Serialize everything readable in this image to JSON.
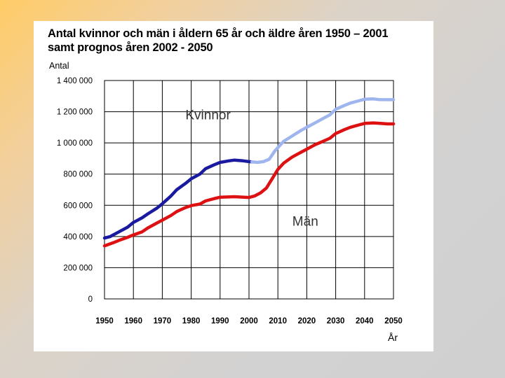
{
  "chart_data": {
    "type": "line",
    "title": "Antal kvinnor och män i åldern 65 år och äldre åren 1950 – 2001",
    "subtitle": "samt prognos åren 2002 - 2050",
    "ylabel": "Antal",
    "xlabel": "År",
    "xlim": [
      1950,
      2050
    ],
    "ylim": [
      0,
      1400000
    ],
    "y_ticks": [
      0,
      200000,
      400000,
      600000,
      800000,
      1000000,
      1200000,
      1400000
    ],
    "y_tick_labels": [
      "0",
      "200 000",
      "400 000",
      "600 000",
      "800 000",
      "1 000 000",
      "1 200 000",
      "1 400 000"
    ],
    "x_ticks": [
      1950,
      1960,
      1970,
      1980,
      1990,
      2000,
      2010,
      2020,
      2030,
      2040,
      2050
    ],
    "x_tick_labels": [
      "1950",
      "1960",
      "1970",
      "1980",
      "1990",
      "2000",
      "2010",
      "2020",
      "2030",
      "2040",
      "2050"
    ],
    "grid": true,
    "annotations": [
      {
        "text": "Kvinnor",
        "x": 1978,
        "y": 1150000
      },
      {
        "text": "Män",
        "x": 2015,
        "y": 470000
      }
    ],
    "series": [
      {
        "name": "Kvinnor",
        "color": "#1a1aa0",
        "x": [
          1950,
          1952,
          1955,
          1958,
          1960,
          1963,
          1965,
          1968,
          1970,
          1973,
          1975,
          1978,
          1980,
          1983,
          1985,
          1988,
          1990,
          1993,
          1995,
          1998,
          2000,
          2001
        ],
        "values": [
          390000,
          400000,
          430000,
          460000,
          490000,
          520000,
          545000,
          580000,
          610000,
          660000,
          700000,
          740000,
          770000,
          800000,
          835000,
          860000,
          875000,
          885000,
          890000,
          885000,
          880000,
          878000
        ]
      },
      {
        "name": "Kvinnor (prognos)",
        "color": "#9fb5ee",
        "x": [
          2001,
          2003,
          2005,
          2007,
          2009,
          2012,
          2015,
          2018,
          2020,
          2023,
          2025,
          2028,
          2030,
          2033,
          2035,
          2038,
          2040,
          2043,
          2045,
          2048,
          2050
        ],
        "values": [
          878000,
          875000,
          880000,
          895000,
          950000,
          1010000,
          1045000,
          1080000,
          1100000,
          1130000,
          1150000,
          1180000,
          1215000,
          1240000,
          1255000,
          1270000,
          1280000,
          1282000,
          1278000,
          1277000,
          1277000
        ]
      },
      {
        "name": "Män",
        "color": "#dd1111",
        "x": [
          1950,
          1953,
          1955,
          1958,
          1960,
          1963,
          1965,
          1968,
          1970,
          1973,
          1975,
          1978,
          1980,
          1983,
          1985,
          1988,
          1990,
          1995,
          2000,
          2002,
          2004,
          2006,
          2008,
          2010,
          2012,
          2015,
          2018,
          2020,
          2023,
          2025,
          2028,
          2030,
          2033,
          2035,
          2038,
          2040,
          2043,
          2045,
          2048,
          2050
        ],
        "values": [
          340000,
          360000,
          375000,
          395000,
          410000,
          430000,
          455000,
          485000,
          505000,
          535000,
          560000,
          585000,
          598000,
          608000,
          628000,
          643000,
          652000,
          655000,
          650000,
          660000,
          680000,
          710000,
          770000,
          830000,
          870000,
          910000,
          940000,
          960000,
          990000,
          1005000,
          1030000,
          1060000,
          1085000,
          1100000,
          1115000,
          1125000,
          1128000,
          1126000,
          1122000,
          1122000
        ]
      }
    ]
  }
}
